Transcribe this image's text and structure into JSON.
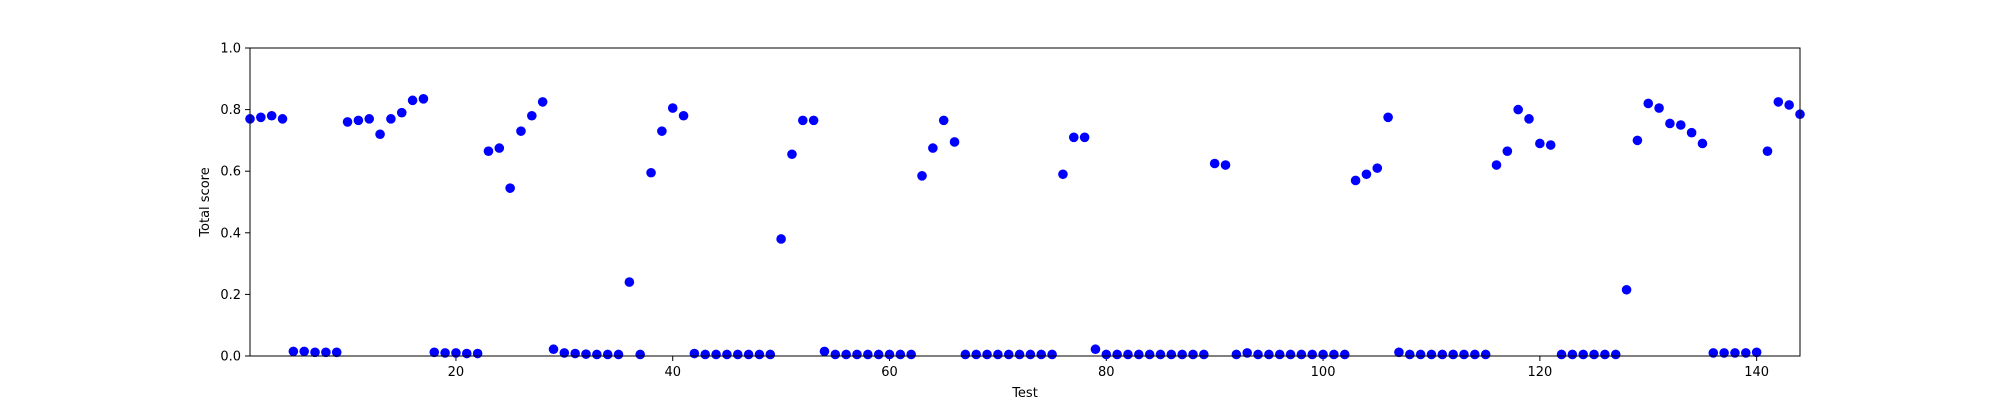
{
  "chart_data": {
    "type": "scatter",
    "title": "",
    "xlabel": "Test",
    "ylabel": "Total score",
    "xlim": [
      1,
      144
    ],
    "ylim": [
      0.0,
      1.0
    ],
    "xticks": [
      20,
      40,
      60,
      80,
      100,
      120,
      140
    ],
    "yticks": [
      "0.0",
      "0.2",
      "0.4",
      "0.6",
      "0.8",
      "1.0"
    ],
    "grid": false,
    "legend": "none",
    "marker_color": "#0000ff",
    "series": [
      {
        "x": [
          1,
          2,
          3,
          4,
          5,
          6,
          7,
          8,
          9,
          10,
          11,
          12,
          13,
          14,
          15,
          16,
          17,
          18,
          19,
          20,
          21,
          22,
          23,
          24,
          25,
          26,
          27,
          28,
          29,
          30,
          31,
          32,
          33,
          34,
          35,
          36,
          37,
          38,
          39,
          40,
          41,
          42,
          43,
          44,
          45,
          46,
          47,
          48,
          49,
          50,
          51,
          52,
          53,
          54,
          55,
          56,
          57,
          58,
          59,
          60,
          61,
          62,
          63,
          64,
          65,
          66,
          67,
          68,
          69,
          70,
          71,
          72,
          73,
          74,
          75,
          76,
          77,
          78,
          79,
          80,
          81,
          82,
          83,
          84,
          85,
          86,
          87,
          88,
          89,
          90,
          91,
          92,
          93,
          94,
          95,
          96,
          97,
          98,
          99,
          100,
          101,
          102,
          103,
          104,
          105,
          106,
          107,
          108,
          109,
          110,
          111,
          112,
          113,
          114,
          115,
          116,
          117,
          118,
          119,
          120,
          121,
          122,
          123,
          124,
          125,
          126,
          127,
          128,
          129,
          130,
          131,
          132,
          133,
          134,
          135,
          136,
          137,
          138,
          139,
          140,
          141,
          142,
          143,
          144
        ],
        "y": [
          0.77,
          0.775,
          0.78,
          0.77,
          0.015,
          0.015,
          0.012,
          0.012,
          0.012,
          0.76,
          0.765,
          0.77,
          0.72,
          0.77,
          0.79,
          0.83,
          0.835,
          0.012,
          0.01,
          0.01,
          0.008,
          0.008,
          0.665,
          0.675,
          0.545,
          0.73,
          0.78,
          0.825,
          0.022,
          0.01,
          0.008,
          0.006,
          0.005,
          0.005,
          0.005,
          0.24,
          0.005,
          0.595,
          0.73,
          0.805,
          0.78,
          0.008,
          0.005,
          0.005,
          0.005,
          0.005,
          0.005,
          0.005,
          0.005,
          0.38,
          0.655,
          0.765,
          0.765,
          0.015,
          0.005,
          0.005,
          0.005,
          0.005,
          0.005,
          0.005,
          0.005,
          0.005,
          0.585,
          0.675,
          0.765,
          0.695,
          0.005,
          0.005,
          0.005,
          0.005,
          0.005,
          0.005,
          0.005,
          0.005,
          0.005,
          0.59,
          0.71,
          0.71,
          0.022,
          0.005,
          0.005,
          0.005,
          0.005,
          0.005,
          0.005,
          0.005,
          0.005,
          0.005,
          0.005,
          0.625,
          0.62,
          0.005,
          0.01,
          0.005,
          0.005,
          0.005,
          0.005,
          0.005,
          0.005,
          0.005,
          0.005,
          0.005,
          0.57,
          0.59,
          0.61,
          0.775,
          0.012,
          0.005,
          0.005,
          0.005,
          0.005,
          0.005,
          0.005,
          0.005,
          0.005,
          0.62,
          0.665,
          0.8,
          0.77,
          0.69,
          0.685,
          0.005,
          0.005,
          0.005,
          0.005,
          0.005,
          0.005,
          0.215,
          0.7,
          0.82,
          0.805,
          0.755,
          0.75,
          0.725,
          0.69,
          0.01,
          0.01,
          0.01,
          0.01,
          0.012,
          0.665,
          0.825,
          0.815,
          0.785
        ]
      }
    ]
  }
}
